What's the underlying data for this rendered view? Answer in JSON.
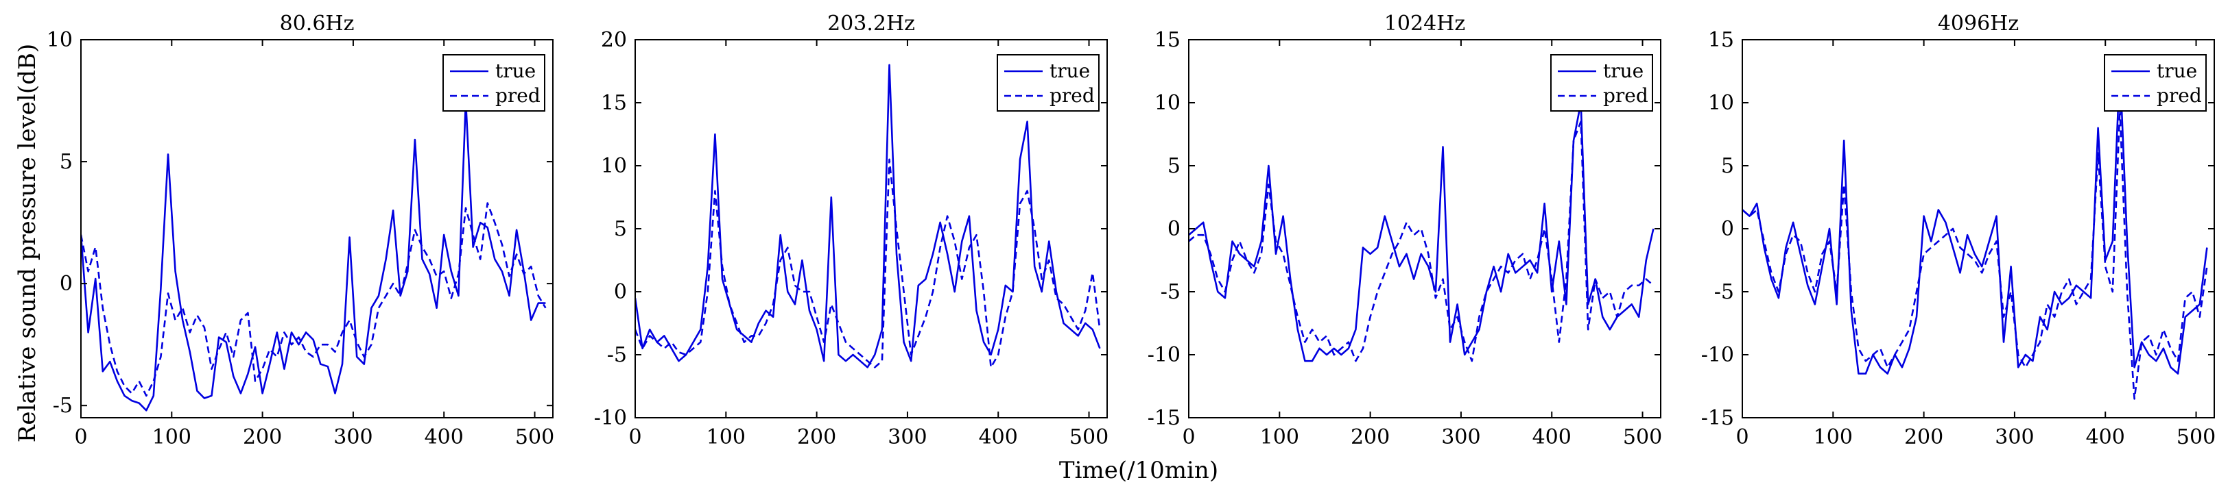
{
  "figure": {
    "ylabel": "Relative sound pressure level(dB)",
    "xlabel": "Time(/10min)"
  },
  "legend": {
    "true_label": "true",
    "pred_label": "pred"
  },
  "colors": {
    "line": "#0000e0",
    "axis": "#000000"
  },
  "chart_data": [
    {
      "type": "line",
      "title": "80.6Hz",
      "xlim": [
        0,
        520
      ],
      "ylim": [
        -5.5,
        10
      ],
      "xticks": [
        0,
        100,
        200,
        300,
        400,
        500
      ],
      "yticks": [
        -5,
        0,
        5,
        10
      ],
      "x": [
        0,
        8,
        16,
        24,
        32,
        40,
        48,
        56,
        64,
        72,
        80,
        88,
        96,
        104,
        112,
        120,
        128,
        136,
        144,
        152,
        160,
        168,
        176,
        184,
        192,
        200,
        208,
        216,
        224,
        232,
        240,
        248,
        256,
        264,
        272,
        280,
        288,
        296,
        304,
        312,
        320,
        328,
        336,
        344,
        352,
        360,
        368,
        376,
        384,
        392,
        400,
        408,
        416,
        424,
        432,
        440,
        448,
        456,
        464,
        472,
        480,
        488,
        496,
        504,
        512
      ],
      "series": [
        {
          "name": "true",
          "style": "solid",
          "values": [
            2.0,
            -2.0,
            0.2,
            -3.6,
            -3.2,
            -4.0,
            -4.6,
            -4.8,
            -4.9,
            -5.2,
            -4.6,
            -0.2,
            5.3,
            0.5,
            -1.5,
            -2.8,
            -4.4,
            -4.7,
            -4.6,
            -2.2,
            -2.4,
            -3.8,
            -4.5,
            -3.7,
            -2.6,
            -4.5,
            -3.3,
            -2.0,
            -3.5,
            -2.0,
            -2.5,
            -2.0,
            -2.3,
            -3.3,
            -3.4,
            -4.5,
            -3.3,
            1.9,
            -3.0,
            -3.3,
            -1.0,
            -0.5,
            1.0,
            3.0,
            -0.5,
            0.5,
            5.9,
            1.0,
            0.4,
            -1.0,
            2.0,
            0.5,
            -0.5,
            7.5,
            1.5,
            2.5,
            2.3,
            1.0,
            0.5,
            -0.5,
            2.2,
            0.5,
            -1.5,
            -0.8,
            -0.8
          ]
        },
        {
          "name": "pred",
          "style": "dashed",
          "values": [
            2.0,
            0.5,
            1.5,
            -1.0,
            -2.5,
            -3.6,
            -4.2,
            -4.5,
            -4.0,
            -4.6,
            -4.0,
            -3.0,
            -0.4,
            -1.5,
            -1.0,
            -2.0,
            -1.3,
            -1.8,
            -3.5,
            -2.7,
            -2.0,
            -3.0,
            -1.5,
            -1.2,
            -4.0,
            -3.5,
            -2.7,
            -3.0,
            -2.0,
            -2.5,
            -2.2,
            -2.8,
            -3.0,
            -2.5,
            -2.5,
            -2.8,
            -2.0,
            -1.5,
            -2.4,
            -3.0,
            -2.5,
            -1.0,
            -0.5,
            0.0,
            -0.5,
            0.8,
            2.2,
            1.5,
            1.0,
            0.3,
            0.5,
            -0.6,
            0.4,
            3.1,
            2.0,
            1.0,
            3.3,
            2.5,
            1.6,
            0.3,
            1.2,
            0.4,
            0.7,
            -0.5,
            -1.0
          ]
        }
      ]
    },
    {
      "type": "line",
      "title": "203.2Hz",
      "xlim": [
        0,
        520
      ],
      "ylim": [
        -10,
        20
      ],
      "xticks": [
        0,
        100,
        200,
        300,
        400,
        500
      ],
      "yticks": [
        -10,
        -5,
        0,
        5,
        10,
        15,
        20
      ],
      "x": [
        0,
        8,
        16,
        24,
        32,
        40,
        48,
        56,
        64,
        72,
        80,
        88,
        96,
        104,
        112,
        120,
        128,
        136,
        144,
        152,
        160,
        168,
        176,
        184,
        192,
        200,
        208,
        216,
        224,
        232,
        240,
        248,
        256,
        264,
        272,
        280,
        288,
        296,
        304,
        312,
        320,
        328,
        336,
        344,
        352,
        360,
        368,
        376,
        384,
        392,
        400,
        408,
        416,
        424,
        432,
        440,
        448,
        456,
        464,
        472,
        480,
        488,
        496,
        504,
        512
      ],
      "series": [
        {
          "name": "true",
          "style": "solid",
          "values": [
            -0.5,
            -4.5,
            -3.0,
            -4.0,
            -3.5,
            -4.5,
            -5.5,
            -5.0,
            -4.0,
            -3.0,
            2.0,
            12.5,
            1.0,
            -1.0,
            -3.0,
            -3.5,
            -4.0,
            -2.5,
            -1.5,
            -2.0,
            4.5,
            0.0,
            -1.0,
            2.5,
            -1.5,
            -3.0,
            -5.5,
            7.5,
            -5.0,
            -5.5,
            -5.0,
            -5.5,
            -6.0,
            -5.0,
            -3.0,
            18.0,
            3.0,
            -4.0,
            -5.5,
            0.5,
            1.0,
            3.0,
            5.5,
            3.0,
            0.0,
            4.0,
            6.0,
            -1.5,
            -4.0,
            -5.0,
            -3.0,
            0.5,
            0.0,
            10.5,
            13.5,
            2.0,
            0.0,
            4.0,
            0.0,
            -2.5,
            -3.0,
            -3.5,
            -2.5,
            -3.0,
            -4.5
          ]
        },
        {
          "name": "pred",
          "style": "dashed",
          "values": [
            -3.0,
            -4.5,
            -3.5,
            -4.0,
            -4.5,
            -4.0,
            -4.8,
            -5.0,
            -4.5,
            -4.0,
            0.0,
            8.0,
            2.0,
            -1.0,
            -2.5,
            -4.0,
            -3.5,
            -3.5,
            -2.5,
            -1.0,
            2.5,
            3.5,
            0.5,
            0.0,
            0.0,
            -2.0,
            -4.0,
            -1.0,
            -2.5,
            -4.0,
            -4.5,
            -5.0,
            -5.5,
            -6.0,
            -5.5,
            10.5,
            5.0,
            0.0,
            -5.0,
            -3.5,
            -2.0,
            0.0,
            3.5,
            6.0,
            4.0,
            1.0,
            3.5,
            4.5,
            0.0,
            -6.0,
            -5.0,
            -2.0,
            0.0,
            7.0,
            8.0,
            5.0,
            1.0,
            2.5,
            -0.5,
            -1.0,
            -2.0,
            -3.0,
            -1.5,
            1.5,
            -3.0
          ]
        }
      ]
    },
    {
      "type": "line",
      "title": "1024Hz",
      "xlim": [
        0,
        520
      ],
      "ylim": [
        -15,
        15
      ],
      "xticks": [
        0,
        100,
        200,
        300,
        400,
        500
      ],
      "yticks": [
        -15,
        -10,
        -5,
        0,
        5,
        10,
        15
      ],
      "x": [
        0,
        8,
        16,
        24,
        32,
        40,
        48,
        56,
        64,
        72,
        80,
        88,
        96,
        104,
        112,
        120,
        128,
        136,
        144,
        152,
        160,
        168,
        176,
        184,
        192,
        200,
        208,
        216,
        224,
        232,
        240,
        248,
        256,
        264,
        272,
        280,
        288,
        296,
        304,
        312,
        320,
        328,
        336,
        344,
        352,
        360,
        368,
        376,
        384,
        392,
        400,
        408,
        416,
        424,
        432,
        440,
        448,
        456,
        464,
        472,
        480,
        488,
        496,
        504,
        512
      ],
      "series": [
        {
          "name": "true",
          "style": "solid",
          "values": [
            -0.5,
            0.0,
            0.5,
            -2.5,
            -5.0,
            -5.5,
            -1.0,
            -2.0,
            -2.5,
            -3.0,
            -1.0,
            5.0,
            -2.0,
            1.0,
            -4.0,
            -8.0,
            -10.5,
            -10.5,
            -9.5,
            -10.0,
            -9.5,
            -10.0,
            -9.5,
            -8.0,
            -1.5,
            -2.0,
            -1.5,
            1.0,
            -1.0,
            -3.0,
            -2.0,
            -4.0,
            -2.0,
            -3.0,
            -5.0,
            6.5,
            -9.0,
            -6.0,
            -10.0,
            -9.0,
            -8.0,
            -5.0,
            -3.0,
            -5.0,
            -2.0,
            -3.5,
            -3.0,
            -2.5,
            -3.5,
            2.0,
            -5.0,
            -1.0,
            -6.0,
            7.0,
            10.0,
            -6.0,
            -4.0,
            -7.0,
            -8.0,
            -7.0,
            -6.5,
            -6.0,
            -7.0,
            -2.5,
            0.0
          ]
        },
        {
          "name": "pred",
          "style": "dashed",
          "values": [
            -1.0,
            -0.5,
            -0.5,
            -2.0,
            -4.0,
            -5.0,
            -2.5,
            -1.0,
            -2.5,
            -3.5,
            -2.0,
            3.5,
            -1.0,
            -2.0,
            -4.5,
            -7.0,
            -9.0,
            -8.0,
            -9.0,
            -8.5,
            -10.0,
            -9.5,
            -9.0,
            -10.5,
            -9.5,
            -7.0,
            -5.0,
            -3.5,
            -2.0,
            -1.0,
            0.5,
            -0.5,
            0.0,
            -2.0,
            -5.5,
            -4.0,
            -8.0,
            -7.0,
            -9.0,
            -10.5,
            -7.0,
            -5.0,
            -4.0,
            -3.0,
            -3.5,
            -2.5,
            -2.0,
            -4.0,
            -2.5,
            0.0,
            -4.0,
            -9.0,
            -4.0,
            7.0,
            8.5,
            -8.0,
            -4.0,
            -5.5,
            -5.0,
            -7.0,
            -5.0,
            -4.5,
            -4.5,
            -4.0,
            -4.5
          ]
        }
      ]
    },
    {
      "type": "line",
      "title": "4096Hz",
      "xlim": [
        0,
        520
      ],
      "ylim": [
        -15,
        15
      ],
      "xticks": [
        0,
        100,
        200,
        300,
        400,
        500
      ],
      "yticks": [
        -15,
        -10,
        -5,
        0,
        5,
        10,
        15
      ],
      "x": [
        0,
        8,
        16,
        24,
        32,
        40,
        48,
        56,
        64,
        72,
        80,
        88,
        96,
        104,
        112,
        120,
        128,
        136,
        144,
        152,
        160,
        168,
        176,
        184,
        192,
        200,
        208,
        216,
        224,
        232,
        240,
        248,
        256,
        264,
        272,
        280,
        288,
        296,
        304,
        312,
        320,
        328,
        336,
        344,
        352,
        360,
        368,
        376,
        384,
        392,
        400,
        408,
        416,
        424,
        432,
        440,
        448,
        456,
        464,
        472,
        480,
        488,
        496,
        504,
        512
      ],
      "series": [
        {
          "name": "true",
          "style": "solid",
          "values": [
            1.5,
            1.0,
            2.0,
            -1.5,
            -4.0,
            -5.5,
            -1.5,
            0.5,
            -2.0,
            -4.5,
            -6.0,
            -3.0,
            0.0,
            -6.0,
            7.0,
            -6.5,
            -11.5,
            -11.5,
            -10.0,
            -11.0,
            -11.5,
            -10.0,
            -11.0,
            -9.5,
            -7.0,
            1.0,
            -1.0,
            1.5,
            0.5,
            -1.5,
            -3.5,
            -0.5,
            -2.0,
            -3.0,
            -1.0,
            1.0,
            -9.0,
            -3.0,
            -11.0,
            -10.0,
            -10.5,
            -7.0,
            -8.0,
            -5.0,
            -6.0,
            -5.5,
            -4.5,
            -5.0,
            -5.5,
            8.0,
            -2.5,
            -1.0,
            13.0,
            -1.0,
            -11.0,
            -9.0,
            -10.0,
            -10.5,
            -9.5,
            -11.0,
            -11.5,
            -7.0,
            -6.5,
            -6.0,
            -1.5
          ]
        },
        {
          "name": "pred",
          "style": "dashed",
          "values": [
            1.5,
            1.0,
            1.5,
            -1.0,
            -3.5,
            -5.0,
            -2.0,
            -0.5,
            -1.0,
            -3.5,
            -5.0,
            -2.0,
            -1.0,
            -5.0,
            3.5,
            -5.0,
            -9.5,
            -10.5,
            -10.0,
            -9.5,
            -11.0,
            -10.0,
            -9.0,
            -8.0,
            -5.0,
            -2.0,
            -1.5,
            -1.0,
            -0.5,
            0.0,
            -1.5,
            -2.0,
            -2.5,
            -3.5,
            -2.0,
            -1.0,
            -7.0,
            -5.0,
            -10.0,
            -11.0,
            -10.0,
            -9.0,
            -6.0,
            -7.0,
            -5.0,
            -4.0,
            -6.0,
            -5.0,
            -4.0,
            6.0,
            -3.0,
            -5.0,
            9.5,
            -5.0,
            -13.5,
            -9.0,
            -8.5,
            -10.0,
            -8.0,
            -9.5,
            -10.5,
            -5.5,
            -5.0,
            -7.0,
            -3.0
          ]
        }
      ]
    }
  ]
}
